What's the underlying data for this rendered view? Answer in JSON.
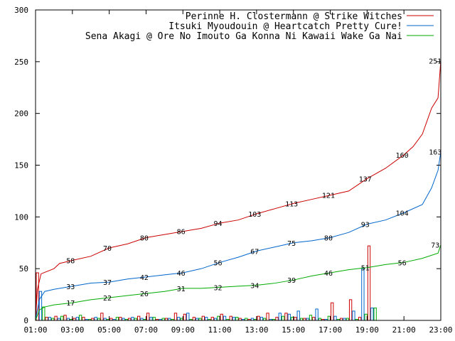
{
  "chart_data": {
    "type": "line",
    "x_ticks": [
      "01:00",
      "03:00",
      "05:00",
      "07:00",
      "09:00",
      "11:00",
      "13:00",
      "15:00",
      "17:00",
      "19:00",
      "21:00",
      "23:00"
    ],
    "x_range_hours": [
      1,
      23
    ],
    "y_ticks": [
      0,
      50,
      100,
      150,
      200,
      250,
      300
    ],
    "ylim": [
      0,
      300
    ],
    "grid": false,
    "legend_position": "top-right",
    "series": [
      {
        "name": "Perinne H. Clostermann @ Strike Witches",
        "color": "#cc0000",
        "points": [
          [
            1.0,
            0
          ],
          [
            1.1,
            30
          ],
          [
            1.3,
            45
          ],
          [
            2.0,
            50
          ],
          [
            2.3,
            55
          ],
          [
            3.0,
            58
          ],
          [
            4.0,
            62
          ],
          [
            5.0,
            70
          ],
          [
            6.0,
            74
          ],
          [
            7.0,
            80
          ],
          [
            8.0,
            83
          ],
          [
            9.0,
            86
          ],
          [
            10.0,
            89
          ],
          [
            11.0,
            94
          ],
          [
            12.0,
            97
          ],
          [
            13.0,
            103
          ],
          [
            14.0,
            108
          ],
          [
            15.0,
            113
          ],
          [
            16.0,
            117
          ],
          [
            17.0,
            121
          ],
          [
            18.0,
            125
          ],
          [
            19.0,
            137
          ],
          [
            20.0,
            147
          ],
          [
            21.0,
            160
          ],
          [
            21.5,
            168
          ],
          [
            22.0,
            180
          ],
          [
            22.5,
            205
          ],
          [
            22.85,
            215
          ],
          [
            23.0,
            251
          ]
        ],
        "labels": [
          {
            "x": 2.9,
            "y": 58,
            "text": "58"
          },
          {
            "x": 4.9,
            "y": 70,
            "text": "70"
          },
          {
            "x": 6.9,
            "y": 80,
            "text": "80"
          },
          {
            "x": 8.9,
            "y": 86,
            "text": "86"
          },
          {
            "x": 10.9,
            "y": 94,
            "text": "94"
          },
          {
            "x": 12.9,
            "y": 103,
            "text": "103"
          },
          {
            "x": 14.9,
            "y": 113,
            "text": "113"
          },
          {
            "x": 16.9,
            "y": 121,
            "text": "121"
          },
          {
            "x": 18.9,
            "y": 137,
            "text": "137"
          },
          {
            "x": 20.9,
            "y": 160,
            "text": "160"
          },
          {
            "x": 22.7,
            "y": 251,
            "text": "251"
          }
        ],
        "hourly_counts": [
          46,
          3,
          4,
          5,
          2,
          3,
          2,
          7,
          2,
          3,
          2,
          4,
          7,
          1,
          2,
          7,
          6,
          3,
          4,
          3,
          6,
          4,
          2,
          1,
          4,
          7,
          3,
          7,
          3,
          2,
          3,
          1,
          17,
          2,
          20,
          3,
          72
        ]
      },
      {
        "name": "Itsuki Myoudouin @ Heartcatch Pretty Cure!",
        "color": "#0066cc",
        "points": [
          [
            1.0,
            0
          ],
          [
            1.2,
            20
          ],
          [
            1.5,
            28
          ],
          [
            2.0,
            30
          ],
          [
            3.0,
            33
          ],
          [
            4.0,
            36
          ],
          [
            5.0,
            37
          ],
          [
            6.0,
            40
          ],
          [
            7.0,
            42
          ],
          [
            8.0,
            44
          ],
          [
            9.0,
            46
          ],
          [
            10.0,
            50
          ],
          [
            11.0,
            56
          ],
          [
            12.0,
            61
          ],
          [
            13.0,
            67
          ],
          [
            14.0,
            71
          ],
          [
            15.0,
            75
          ],
          [
            16.0,
            77
          ],
          [
            17.0,
            80
          ],
          [
            18.0,
            85
          ],
          [
            19.0,
            93
          ],
          [
            20.0,
            97
          ],
          [
            21.0,
            104
          ],
          [
            22.0,
            112
          ],
          [
            22.5,
            128
          ],
          [
            22.85,
            145
          ],
          [
            23.0,
            163
          ]
        ],
        "labels": [
          {
            "x": 2.9,
            "y": 33,
            "text": "33"
          },
          {
            "x": 4.9,
            "y": 37,
            "text": "37"
          },
          {
            "x": 6.9,
            "y": 42,
            "text": "42"
          },
          {
            "x": 8.9,
            "y": 46,
            "text": "46"
          },
          {
            "x": 10.9,
            "y": 56,
            "text": "56"
          },
          {
            "x": 12.9,
            "y": 67,
            "text": "67"
          },
          {
            "x": 14.9,
            "y": 75,
            "text": "75"
          },
          {
            "x": 16.9,
            "y": 80,
            "text": "80"
          },
          {
            "x": 18.9,
            "y": 93,
            "text": "93"
          },
          {
            "x": 20.9,
            "y": 104,
            "text": "104"
          },
          {
            "x": 22.7,
            "y": 163,
            "text": "163"
          }
        ],
        "hourly_counts": [
          28,
          3,
          2,
          2,
          3,
          1,
          3,
          2,
          1,
          2,
          3,
          2,
          3,
          1,
          2,
          3,
          7,
          2,
          3,
          2,
          4,
          3,
          1,
          2,
          3,
          1,
          7,
          6,
          9,
          2,
          11,
          1,
          4,
          2,
          9,
          50,
          12
        ]
      },
      {
        "name": "Sena Akagi @ Ore No Imouto Ga Konna Ni Kawaii Wake Ga Nai",
        "color": "#00aa00",
        "points": [
          [
            1.0,
            0
          ],
          [
            1.2,
            10
          ],
          [
            1.5,
            13
          ],
          [
            2.0,
            15
          ],
          [
            3.0,
            17
          ],
          [
            4.0,
            20
          ],
          [
            5.0,
            22
          ],
          [
            6.0,
            24
          ],
          [
            7.0,
            26
          ],
          [
            8.0,
            28
          ],
          [
            9.0,
            31
          ],
          [
            10.0,
            31
          ],
          [
            11.0,
            32
          ],
          [
            12.0,
            33
          ],
          [
            13.0,
            34
          ],
          [
            14.0,
            36
          ],
          [
            15.0,
            39
          ],
          [
            16.0,
            43
          ],
          [
            17.0,
            46
          ],
          [
            18.0,
            49
          ],
          [
            19.0,
            51
          ],
          [
            20.0,
            54
          ],
          [
            21.0,
            56
          ],
          [
            22.0,
            60
          ],
          [
            22.85,
            65
          ],
          [
            23.0,
            73
          ]
        ],
        "labels": [
          {
            "x": 2.9,
            "y": 17,
            "text": "17"
          },
          {
            "x": 4.9,
            "y": 22,
            "text": "22"
          },
          {
            "x": 6.9,
            "y": 26,
            "text": "26"
          },
          {
            "x": 8.9,
            "y": 31,
            "text": "31"
          },
          {
            "x": 10.9,
            "y": 32,
            "text": "32"
          },
          {
            "x": 12.9,
            "y": 34,
            "text": "34"
          },
          {
            "x": 14.9,
            "y": 39,
            "text": "39"
          },
          {
            "x": 16.9,
            "y": 46,
            "text": "46"
          },
          {
            "x": 18.9,
            "y": 51,
            "text": "51"
          },
          {
            "x": 20.9,
            "y": 56,
            "text": "56"
          },
          {
            "x": 22.7,
            "y": 73,
            "text": "73"
          }
        ],
        "hourly_counts": [
          13,
          2,
          4,
          1,
          5,
          1,
          2,
          1,
          3,
          1,
          2,
          1,
          3,
          2,
          1,
          2,
          1,
          2,
          1,
          4,
          1,
          3,
          2,
          1,
          2,
          1,
          4,
          3,
          2,
          5,
          2,
          4,
          1,
          2,
          1,
          6,
          12
        ]
      }
    ]
  }
}
